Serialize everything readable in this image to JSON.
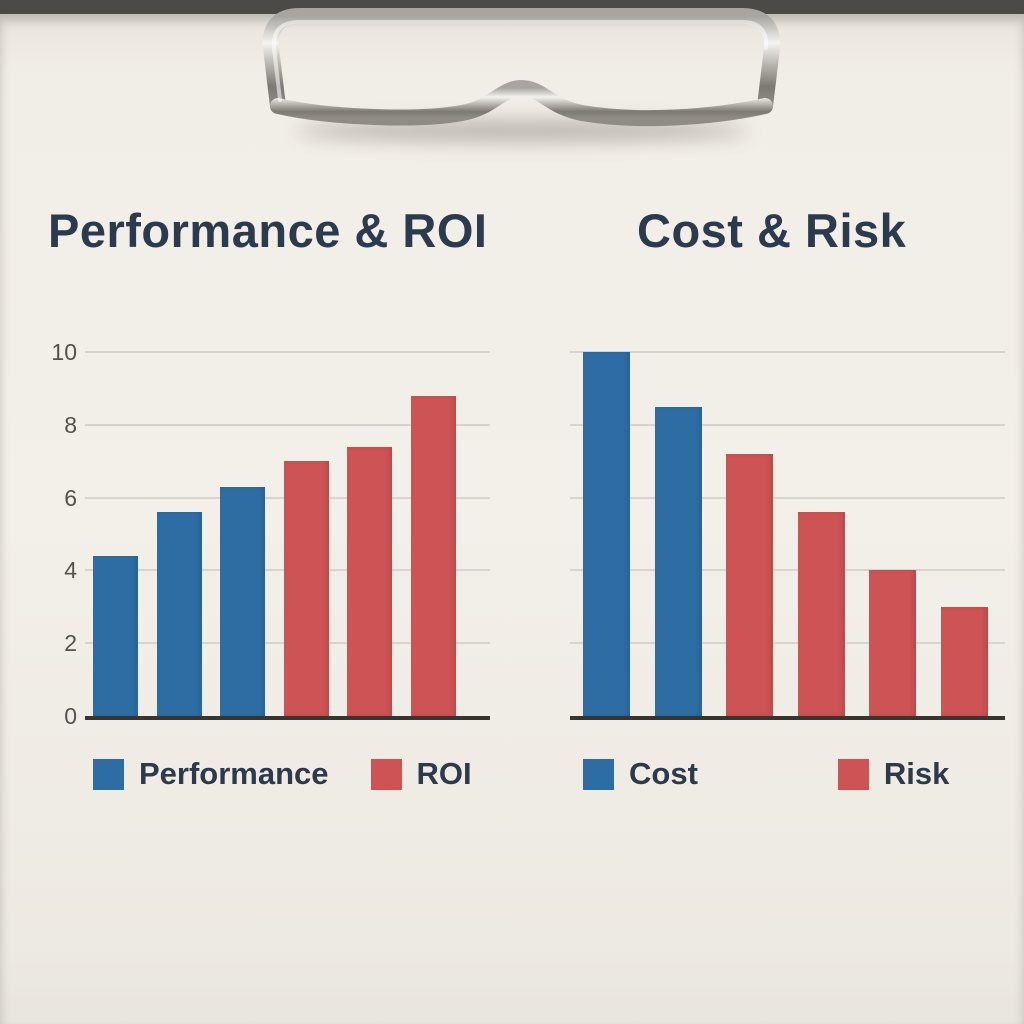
{
  "scene": {
    "background_color": "#4b4a47",
    "paper_color": "#f2eee8"
  },
  "chart_data": [
    {
      "type": "bar",
      "title": "Performance & ROI",
      "xlabel": "",
      "ylabel": "",
      "ylim": [
        0,
        10
      ],
      "yticks": [
        0,
        2,
        4,
        6,
        8,
        10
      ],
      "show_ytick_labels": true,
      "grid": true,
      "legend_position": "bottom",
      "series": [
        {
          "name": "Performance",
          "color": "#2e6da4",
          "values": [
            4.4,
            5.6,
            6.3
          ]
        },
        {
          "name": "ROI",
          "color": "#cd5355",
          "values": [
            7.0,
            7.4,
            8.8
          ]
        }
      ],
      "legend": [
        {
          "label": "Performance",
          "color": "#2e6da4"
        },
        {
          "label": "ROI",
          "color": "#cd5355"
        }
      ]
    },
    {
      "type": "bar",
      "title": "Cost & Risk",
      "xlabel": "",
      "ylabel": "",
      "ylim": [
        0,
        10
      ],
      "yticks": [
        0,
        2,
        4,
        6,
        8,
        10
      ],
      "show_ytick_labels": false,
      "grid": true,
      "legend_position": "bottom",
      "series": [
        {
          "name": "Cost",
          "color": "#2e6da4",
          "values": [
            10,
            8.5
          ]
        },
        {
          "name": "Risk",
          "color": "#cd5355",
          "values": [
            7.2,
            5.6,
            4.0,
            3.0
          ]
        }
      ],
      "legend": [
        {
          "label": "Cost",
          "color": "#2e6da4"
        },
        {
          "label": "Risk",
          "color": "#cd5355"
        }
      ]
    }
  ]
}
